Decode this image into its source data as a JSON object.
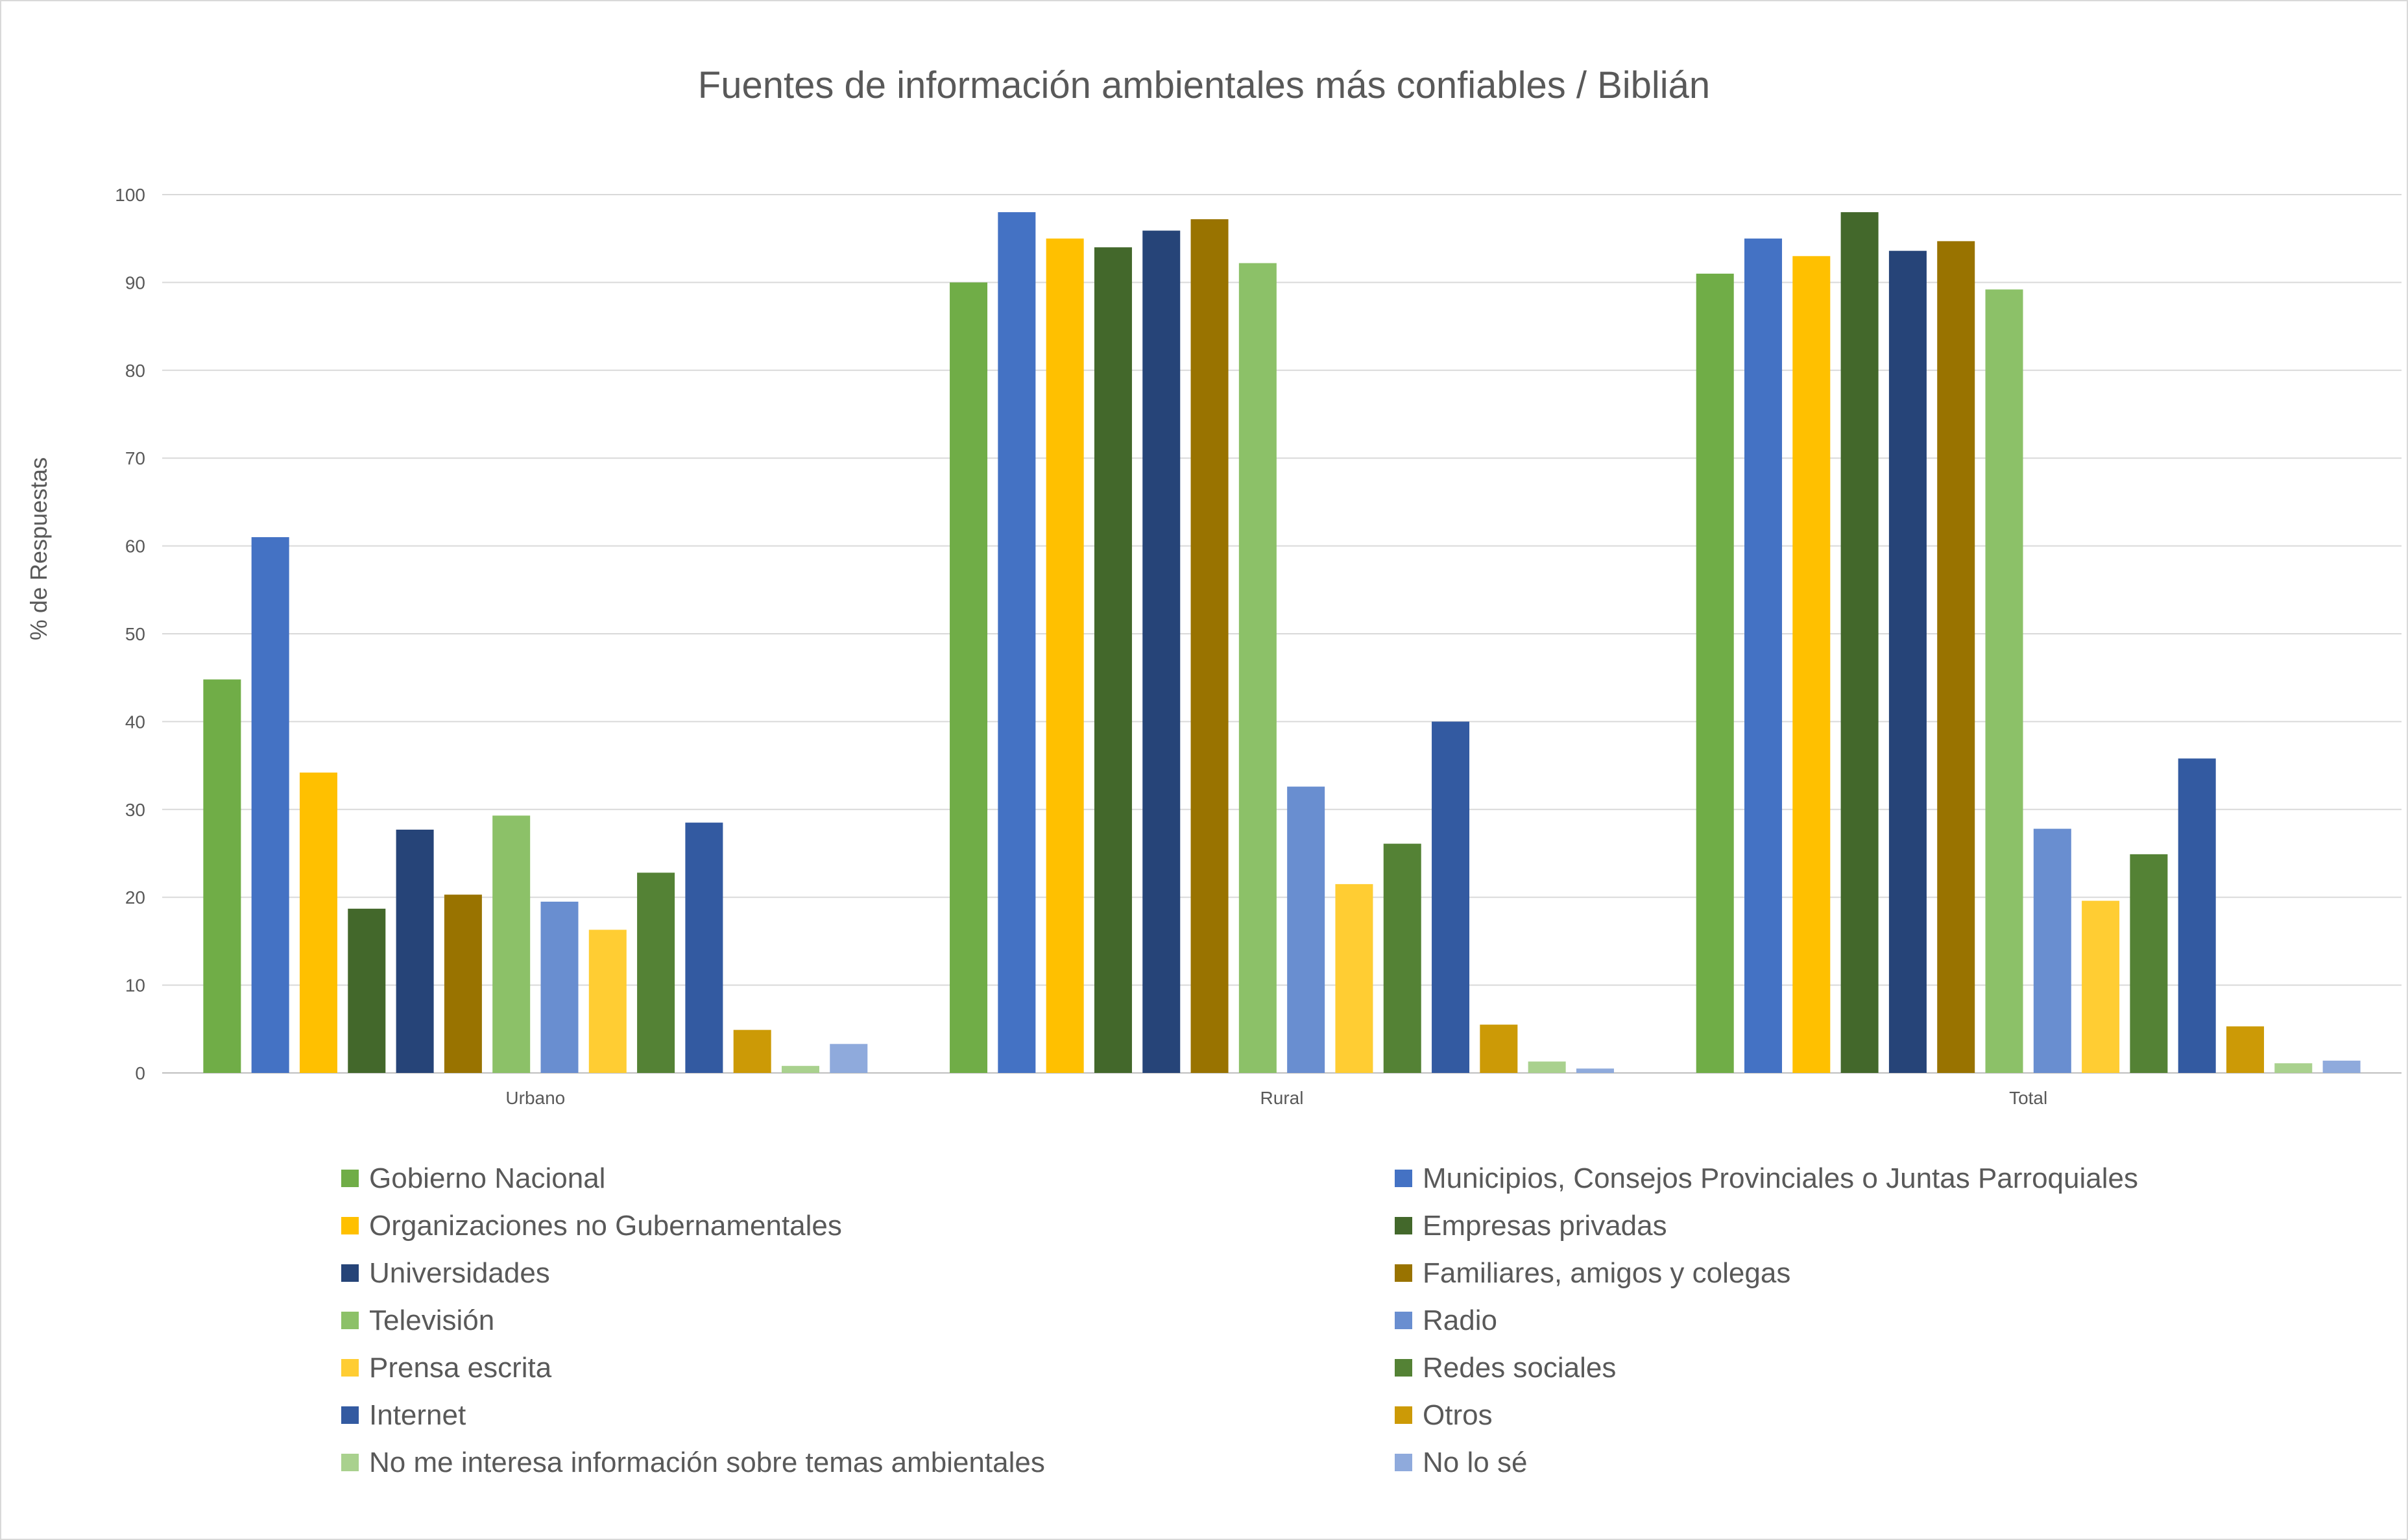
{
  "chart_data": {
    "type": "bar",
    "title": "Fuentes de información ambientales más confiables / Biblián",
    "xlabel": "",
    "ylabel": "% de Respuestas",
    "ylim": [
      0,
      100
    ],
    "yticks": [
      0,
      10,
      20,
      30,
      40,
      50,
      60,
      70,
      80,
      90,
      100
    ],
    "grid": true,
    "legend_position": "bottom",
    "categories": [
      "Urbano",
      "Rural",
      "Total"
    ],
    "series": [
      {
        "name": "Gobierno Nacional",
        "color": "#70ad47",
        "values": [
          44.8,
          90.0,
          91.0
        ]
      },
      {
        "name": "Municipios, Consejos Provinciales o Juntas Parroquiales",
        "color": "#4472c4",
        "values": [
          61.0,
          98.0,
          95.0
        ]
      },
      {
        "name": "Organizaciones no Gubernamentales",
        "color": "#ffc000",
        "values": [
          34.2,
          95.0,
          93.0
        ]
      },
      {
        "name": "Empresas privadas",
        "color": "#43682b",
        "values": [
          18.7,
          94.0,
          98.0
        ]
      },
      {
        "name": "Universidades",
        "color": "#264478",
        "values": [
          27.7,
          95.9,
          93.6
        ]
      },
      {
        "name": "Familiares, amigos y colegas",
        "color": "#997300",
        "values": [
          20.3,
          97.2,
          94.7
        ]
      },
      {
        "name": "Televisión",
        "color": "#8cc168",
        "values": [
          29.3,
          92.2,
          89.2
        ]
      },
      {
        "name": "Radio",
        "color": "#698ed0",
        "values": [
          19.5,
          32.6,
          27.8
        ]
      },
      {
        "name": "Prensa escrita",
        "color": "#ffcd33",
        "values": [
          16.3,
          21.5,
          19.6
        ]
      },
      {
        "name": "Redes sociales",
        "color": "#548235",
        "values": [
          22.8,
          26.1,
          24.9
        ]
      },
      {
        "name": "Internet",
        "color": "#335aa1",
        "values": [
          28.5,
          40.0,
          35.8
        ]
      },
      {
        "name": "Otros",
        "color": "#cc9a06",
        "values": [
          4.9,
          5.5,
          5.3
        ]
      },
      {
        "name": "No me interesa información sobre temas ambientales",
        "color": "#a9d18e",
        "values": [
          0.8,
          1.3,
          1.1
        ]
      },
      {
        "name": "No lo sé",
        "color": "#8faadc",
        "values": [
          3.3,
          0.5,
          1.4
        ]
      }
    ]
  }
}
